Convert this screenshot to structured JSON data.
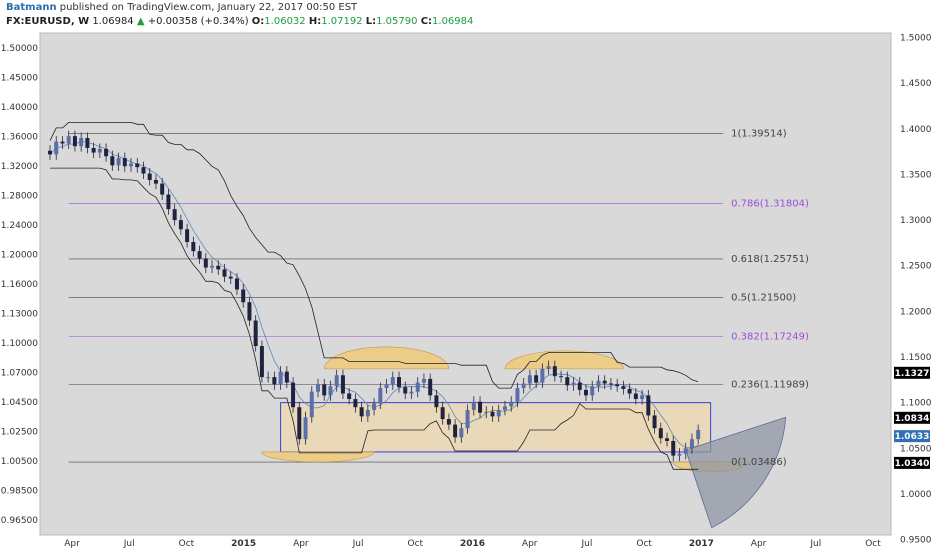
{
  "header": {
    "author": "Batmann",
    "published": "published on TradingView.com, January 22, 2017 00:50 EST",
    "symbol": "FX:EURUSD, W",
    "last": "1.06984",
    "change": "+0.00358 (+0.34%)",
    "o_label": "O:",
    "o_value": "1.06032",
    "h_label": "H:",
    "h_value": "1.07192",
    "l_label": "L:",
    "l_value": "1.05790",
    "c_label": "C:",
    "c_value": "1.06984"
  },
  "colors": {
    "background": "#d9d9d9",
    "up": "#5a6fa8",
    "down": "#1f2340",
    "fib_purple": "#9b4fd6",
    "fib_gray": "#444444",
    "zone_fill": "#f2d9a8",
    "arc_fill": "#f0c870",
    "box_border": "#3b3bd6",
    "projection": "#8f96a3"
  },
  "chart_data": {
    "type": "line",
    "title": "",
    "xlabel": "",
    "ylabel": "",
    "x_ticks": [
      "Apr",
      "Jul",
      "Oct",
      "2015",
      "Apr",
      "Jul",
      "Oct",
      "2016",
      "Apr",
      "Jul",
      "Oct",
      "2017",
      "Apr",
      "Jul",
      "Oct"
    ],
    "left_y_ticks": [
      "1.50000",
      "1.45000",
      "1.40000",
      "1.36000",
      "1.32000",
      "1.28000",
      "1.24000",
      "1.20000",
      "1.16000",
      "1.13000",
      "1.10000",
      "1.07000",
      "1.04500",
      "1.02500",
      "1.00500",
      "0.98500",
      "0.96500"
    ],
    "right_y_ticks": [
      "1.5000",
      "1.4500",
      "1.4000",
      "1.3500",
      "1.3000",
      "1.2500",
      "1.2000",
      "1.1500",
      "1.1000",
      "1.0500",
      "1.0000",
      "0.9500"
    ],
    "price_labels": [
      {
        "text": "1.1327",
        "value": 1.1327,
        "color": "#000000"
      },
      {
        "text": "1.0834",
        "value": 1.0834,
        "color": "#000000"
      },
      {
        "text": "1.0633",
        "value": 1.0633,
        "color": "#2e6fb5"
      },
      {
        "text": "1.0340",
        "value": 1.034,
        "color": "#000000"
      }
    ],
    "fib_levels": [
      {
        "label": "1(1.39514)",
        "value": 1.39514,
        "color": "#444444"
      },
      {
        "label": "0.786(1.31804)",
        "value": 1.31804,
        "color": "#9b4fd6"
      },
      {
        "label": "0.618(1.25751)",
        "value": 1.25751,
        "color": "#444444"
      },
      {
        "label": "0.5(1.21500)",
        "value": 1.215,
        "color": "#444444"
      },
      {
        "label": "0.382(1.17249)",
        "value": 1.17249,
        "color": "#9b4fd6"
      },
      {
        "label": "0.236(1.11989)",
        "value": 1.11989,
        "color": "#444444"
      },
      {
        "label": "0(1.03486)",
        "value": 1.03486,
        "color": "#444444"
      }
    ],
    "series": [
      {
        "values": [
          1.372,
          1.386,
          1.384,
          1.392,
          1.381,
          1.39,
          1.379,
          1.374,
          1.378,
          1.37,
          1.36,
          1.368,
          1.359,
          1.362,
          1.358,
          1.351,
          1.344,
          1.34,
          1.328,
          1.312,
          1.3,
          1.29,
          1.276,
          1.266,
          1.258,
          1.248,
          1.25,
          1.246,
          1.238,
          1.236,
          1.224,
          1.21,
          1.19,
          1.162,
          1.128,
          1.128,
          1.12,
          1.134,
          1.122,
          1.095,
          1.06,
          1.084,
          1.112,
          1.12,
          1.108,
          1.118,
          1.13,
          1.11,
          1.104,
          1.095,
          1.085,
          1.092,
          1.099,
          1.116,
          1.12,
          1.128,
          1.117,
          1.11,
          1.112,
          1.122,
          1.126,
          1.108,
          1.095,
          1.082,
          1.076,
          1.062,
          1.072,
          1.092,
          1.101,
          1.089,
          1.09,
          1.085,
          1.092,
          1.096,
          1.101,
          1.116,
          1.121,
          1.13,
          1.122,
          1.137,
          1.14,
          1.129,
          1.128,
          1.119,
          1.122,
          1.114,
          1.108,
          1.118,
          1.124,
          1.121,
          1.12,
          1.118,
          1.115,
          1.11,
          1.104,
          1.108,
          1.086,
          1.072,
          1.061,
          1.058,
          1.042,
          1.044,
          1.05,
          1.06,
          1.07
        ]
      }
    ],
    "x_range": [
      0,
      104
    ],
    "y_range": [
      0.955,
      1.505
    ]
  }
}
